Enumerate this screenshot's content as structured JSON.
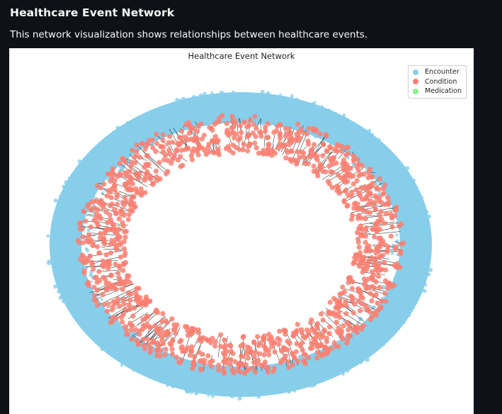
{
  "header": {
    "title": "Healthcare Event Network",
    "caption": "This network visualization shows relationships between healthcare events."
  },
  "chart_data": {
    "type": "network",
    "title": "Healthcare Event Network",
    "legend": {
      "placement": "top-right",
      "entries": [
        {
          "label": "Encounter",
          "color": "#87ceeb"
        },
        {
          "label": "Condition",
          "color": "#fa8072"
        },
        {
          "label": "Medication",
          "color": "#90ee90"
        }
      ]
    },
    "edge_color": "#000000",
    "axes_visible": false
  }
}
